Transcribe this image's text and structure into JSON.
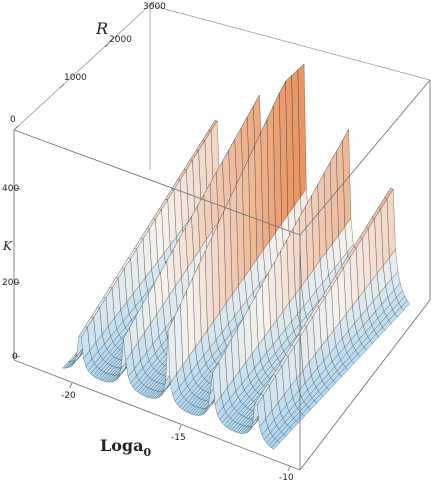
{
  "chart_data": {
    "type": "surface3d",
    "axes": {
      "x": {
        "label": "Loga",
        "label_subscript": "0",
        "ticks": [
          "-20",
          "-15",
          "-10"
        ],
        "range": [
          -23,
          -10
        ]
      },
      "y": {
        "label": "R",
        "ticks": [
          "0",
          "1000",
          "2000",
          "3000"
        ],
        "range": [
          0,
          3000
        ]
      },
      "z": {
        "label": "K",
        "ticks": [
          "0",
          "200",
          "400"
        ],
        "range": [
          0,
          500
        ]
      }
    },
    "resonances": [
      {
        "loga0": -20.0,
        "peak_K": 500
      },
      {
        "loga0": -18.0,
        "peak_K": 500
      },
      {
        "loga0": -16.0,
        "peak_K": 500
      },
      {
        "loga0": -14.0,
        "peak_K": 500
      },
      {
        "loga0": -12.0,
        "peak_K": 500
      }
    ],
    "colormap": {
      "low": "#9fd3f3",
      "mid": "#f7f2ee",
      "high": "#e8915e"
    },
    "box": true,
    "grid": false
  }
}
